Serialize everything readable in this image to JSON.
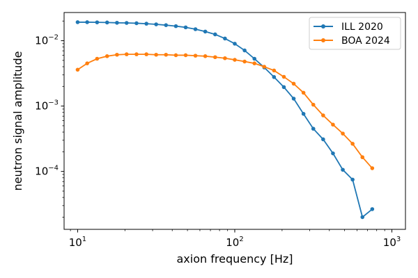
{
  "chart_data": {
    "type": "line",
    "title": "",
    "xlabel": "axion frequency [Hz]",
    "ylabel": "neutron signal amplitude",
    "xscale": "log",
    "yscale": "log",
    "xlim": [
      8.2,
      1220
    ],
    "ylim": [
      1.3e-05,
      0.027
    ],
    "xticks": [
      {
        "value": 10,
        "base": "10",
        "exp": "1"
      },
      {
        "value": 100,
        "base": "10",
        "exp": "2"
      },
      {
        "value": 1000,
        "base": "10",
        "exp": "3"
      }
    ],
    "yticks": [
      {
        "value": 0.0001,
        "base": "10",
        "exp": "−4"
      },
      {
        "value": 0.001,
        "base": "10",
        "exp": "−3"
      },
      {
        "value": 0.01,
        "base": "10",
        "exp": "−2"
      }
    ],
    "legend_position": "top-right",
    "x": [
      10.0,
      11.5,
      13.3,
      15.4,
      17.8,
      20.5,
      23.7,
      27.4,
      31.6,
      36.5,
      42.2,
      48.7,
      56.2,
      64.9,
      75.0,
      86.6,
      100.0,
      115.5,
      133.4,
      154.0,
      177.8,
      205.4,
      237.1,
      273.8,
      316.2,
      365.2,
      421.7,
      487.0,
      562.3,
      649.4,
      749.9,
      866.0,
      1000.0
    ],
    "series": [
      {
        "name": "ILL 2020",
        "color": "#1f77b4",
        "values": [
          0.0192,
          0.0192,
          0.0191,
          0.019,
          0.0188,
          0.0187,
          0.0185,
          0.0182,
          0.0178,
          0.0173,
          0.0167,
          0.016,
          0.015,
          0.0138,
          0.0125,
          0.0108,
          0.009,
          0.0071,
          0.0053,
          0.0039,
          0.00278,
          0.00195,
          0.0013,
          0.00076,
          0.00045,
          0.00031,
          0.000189,
          0.000106,
          7.5e-05,
          2e-05,
          2.65e-05,
          null,
          null
        ]
      },
      {
        "name": "BOA 2024",
        "color": "#ff7f0e",
        "values": [
          0.0036,
          0.0045,
          0.0053,
          0.0058,
          0.0061,
          0.0062,
          0.0062,
          0.0062,
          0.0061,
          0.0061,
          0.006,
          0.006,
          0.0059,
          0.0058,
          0.0056,
          0.0054,
          0.0051,
          0.0048,
          0.0045,
          0.004,
          0.0035,
          0.0028,
          0.0022,
          0.0016,
          0.00105,
          0.00072,
          0.00052,
          0.00038,
          0.000265,
          0.000165,
          0.000112,
          null,
          null
        ]
      }
    ]
  }
}
